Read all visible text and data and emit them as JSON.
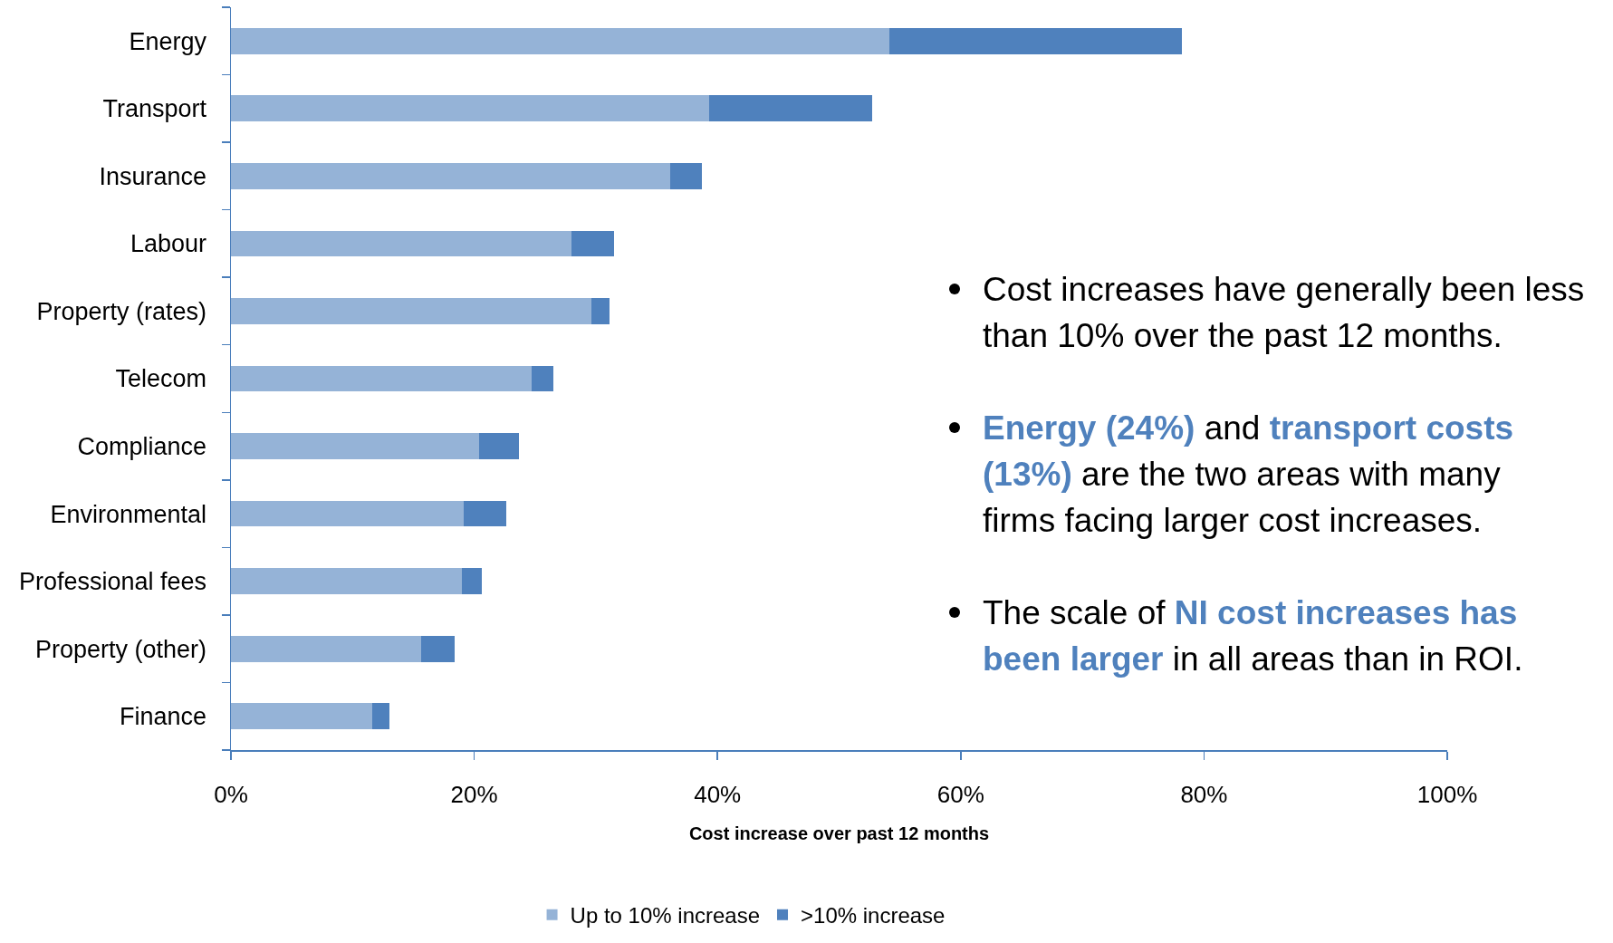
{
  "chart_data": {
    "type": "bar",
    "orientation": "horizontal",
    "stacked": true,
    "categories": [
      "Energy",
      "Transport",
      "Insurance",
      "Labour",
      "Property (rates)",
      "Telecom",
      "Compliance",
      "Environmental",
      "Professional fees",
      "Property (other)",
      "Finance"
    ],
    "series": [
      {
        "name": "Up to 10% increase",
        "color": "#95b3d7",
        "values": [
          54.1,
          39.3,
          36.1,
          28.0,
          29.6,
          24.7,
          20.4,
          19.1,
          19.0,
          15.6,
          11.6
        ]
      },
      {
        "name": ">10% increase",
        "color": "#4f81bd",
        "values": [
          24.1,
          13.4,
          2.6,
          3.5,
          1.5,
          1.8,
          3.3,
          3.5,
          1.6,
          2.8,
          1.4
        ]
      }
    ],
    "xlim": [
      0,
      100
    ],
    "xticks": [
      {
        "value": 0,
        "label": "0%"
      },
      {
        "value": 20,
        "label": "20%"
      },
      {
        "value": 40,
        "label": "40%"
      },
      {
        "value": 60,
        "label": "60%"
      },
      {
        "value": 80,
        "label": "80%"
      },
      {
        "value": 100,
        "label": "100%"
      }
    ],
    "xlabel": "Cost increase over past 12 months",
    "legend": "bottom",
    "annotations": [
      "Cost increases have generally been less than 10% over the past 12 months.",
      "Energy (24%)",
      "and",
      "transport costs",
      "(13%)",
      "are the two areas with many",
      "firms facing larger cost increases.",
      "The scale of",
      "NI cost increases has",
      "been larger",
      "in all areas than in ROI."
    ]
  }
}
